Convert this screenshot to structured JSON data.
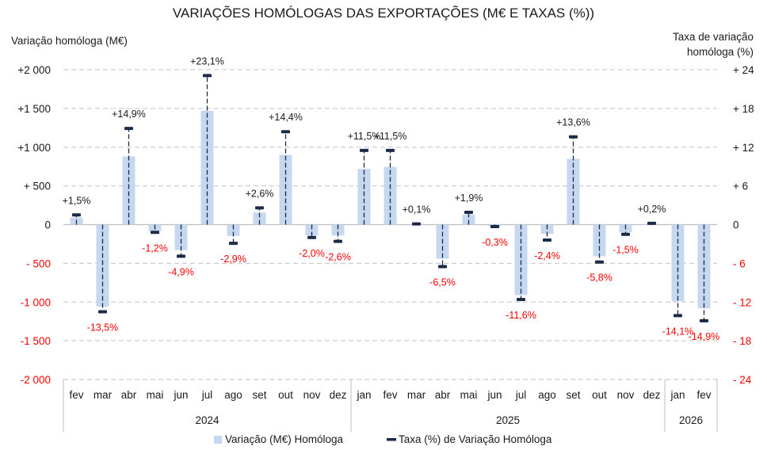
{
  "chart_data": {
    "type": "bar+marker",
    "title": "VARIAÇÕES HOMÓLOGAS DAS EXPORTAÇÕES (M€ E TAXAS (%))",
    "ylabel_left": "Variação homóloga (M€)",
    "ylabel_right_line1": "Taxa de variação",
    "ylabel_right_line2": "homóloga (%)",
    "ylim_left": [
      -2000,
      2000
    ],
    "ylim_right": [
      -24,
      24
    ],
    "left_ticks": [
      {
        "value": 2000,
        "label": "+2 000"
      },
      {
        "value": 1500,
        "label": "+1 500"
      },
      {
        "value": 1000,
        "label": "+1 000"
      },
      {
        "value": 500,
        "label": "+ 500"
      },
      {
        "value": 0,
        "label": "0"
      },
      {
        "value": -500,
        "label": "- 500"
      },
      {
        "value": -1000,
        "label": "-1 000"
      },
      {
        "value": -1500,
        "label": "-1 500"
      },
      {
        "value": -2000,
        "label": "-2 000"
      }
    ],
    "right_ticks": [
      {
        "value": 24,
        "label": "+ 24"
      },
      {
        "value": 18,
        "label": "+ 18"
      },
      {
        "value": 12,
        "label": "+ 12"
      },
      {
        "value": 6,
        "label": "+ 6"
      },
      {
        "value": 0,
        "label": "0"
      },
      {
        "value": -6,
        "label": "- 6"
      },
      {
        "value": -12,
        "label": "- 12"
      },
      {
        "value": -18,
        "label": "- 18"
      },
      {
        "value": -24,
        "label": "- 24"
      }
    ],
    "grid": true,
    "categories": [
      "fev",
      "mar",
      "abr",
      "mai",
      "jun",
      "jul",
      "ago",
      "set",
      "out",
      "nov",
      "dez",
      "jan",
      "fev",
      "mar",
      "abr",
      "mai",
      "jun",
      "jul",
      "ago",
      "set",
      "out",
      "nov",
      "dez",
      "jan",
      "fev"
    ],
    "years": [
      {
        "label": "2024",
        "count": 11
      },
      {
        "label": "2025",
        "count": 12
      },
      {
        "label": "2026",
        "count": 2
      }
    ],
    "series": [
      {
        "name": "Variação (M€) Homóloga",
        "axis": "left",
        "type": "bar",
        "values": [
          90,
          -1060,
          880,
          -85,
          -330,
          1470,
          -145,
          155,
          900,
          -140,
          -140,
          720,
          745,
          10,
          -440,
          130,
          -25,
          -910,
          -120,
          850,
          -410,
          -100,
          10,
          -990,
          -1080
        ]
      },
      {
        "name": "Taxa (%) de Variação Homóloga",
        "axis": "right",
        "type": "marker",
        "values": [
          1.5,
          -13.5,
          14.9,
          -1.2,
          -4.9,
          23.1,
          -2.9,
          2.6,
          14.4,
          -2.0,
          -2.6,
          11.5,
          11.5,
          0.1,
          -6.5,
          1.9,
          -0.3,
          -11.6,
          -2.4,
          13.6,
          -5.8,
          -1.5,
          0.2,
          -14.1,
          -14.9
        ],
        "labels": [
          "+1,5%",
          "-13,5%",
          "+14,9%",
          "-1,2%",
          "-4,9%",
          "+23,1%",
          "-2,9%",
          "+2,6%",
          "+14,4%",
          "-2,0%",
          "-2,6%",
          "+11,5%",
          "+11,5%",
          "+0,1%",
          "-6,5%",
          "+1,9%",
          "-0,3%",
          "-11,6%",
          "-2,4%",
          "+13,6%",
          "-5,8%",
          "-1,5%",
          "+0,2%",
          "-14,1%",
          "-14,9%"
        ]
      }
    ],
    "legend": [
      "Variação (M€) Homóloga",
      "Taxa (%) de Variação Homóloga"
    ],
    "legend_position": "bottom",
    "colors": {
      "bar": "#c6d7f0",
      "marker": "#1b2a47",
      "positive_text": "#1a1a1a",
      "negative_text": "#ff0000",
      "grid": "#cfcfcf",
      "axis": "#bfbfbf"
    }
  }
}
